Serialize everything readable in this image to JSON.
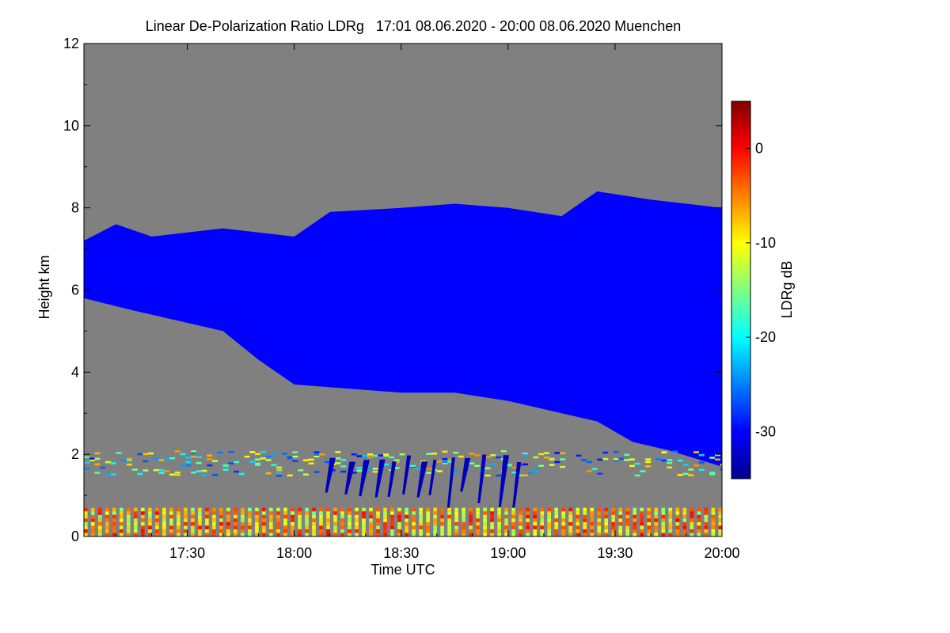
{
  "chart_data": {
    "type": "heatmap",
    "title": "Linear De-Polarization Ratio LDRg   17:01 08.06.2020 - 20:00 08.06.2020 Muenchen",
    "xlabel": "Time UTC",
    "ylabel": "Height km",
    "colorbar_label": "LDRg dB",
    "x_time_range": [
      "17:01",
      "20:00"
    ],
    "x_ticks": [
      "17:30",
      "18:00",
      "18:30",
      "19:00",
      "19:30",
      "20:00"
    ],
    "ylim": [
      0,
      12
    ],
    "y_ticks": [
      0,
      2,
      4,
      6,
      8,
      10,
      12
    ],
    "color_range_db": [
      -35,
      5
    ],
    "colorbar_ticks": [
      0,
      -10,
      -20,
      -30
    ],
    "no_data_color": "#808080",
    "colormap": [
      "#00008f",
      "#0000ff",
      "#0080ff",
      "#00ffff",
      "#80ff80",
      "#ffff00",
      "#ff8000",
      "#ff0000",
      "#800000"
    ],
    "cloud_layer": {
      "ldr_db": -30,
      "top_km": [
        {
          "time": "17:01",
          "value": 7.2
        },
        {
          "time": "17:10",
          "value": 7.6
        },
        {
          "time": "17:20",
          "value": 7.3
        },
        {
          "time": "17:40",
          "value": 7.5
        },
        {
          "time": "18:00",
          "value": 7.3
        },
        {
          "time": "18:10",
          "value": 7.9
        },
        {
          "time": "18:30",
          "value": 8.0
        },
        {
          "time": "18:45",
          "value": 8.1
        },
        {
          "time": "19:00",
          "value": 8.0
        },
        {
          "time": "19:15",
          "value": 7.8
        },
        {
          "time": "19:25",
          "value": 8.4
        },
        {
          "time": "19:40",
          "value": 8.2
        },
        {
          "time": "20:00",
          "value": 8.0
        }
      ],
      "base_km": [
        {
          "time": "17:01",
          "value": 5.8
        },
        {
          "time": "17:15",
          "value": 5.5
        },
        {
          "time": "17:30",
          "value": 5.2
        },
        {
          "time": "17:40",
          "value": 5.0
        },
        {
          "time": "17:50",
          "value": 4.3
        },
        {
          "time": "18:00",
          "value": 3.7
        },
        {
          "time": "18:15",
          "value": 3.6
        },
        {
          "time": "18:30",
          "value": 3.5
        },
        {
          "time": "18:45",
          "value": 3.5
        },
        {
          "time": "19:00",
          "value": 3.3
        },
        {
          "time": "19:15",
          "value": 3.0
        },
        {
          "time": "19:25",
          "value": 2.8
        },
        {
          "time": "19:35",
          "value": 2.3
        },
        {
          "time": "19:45",
          "value": 2.1
        },
        {
          "time": "20:00",
          "value": 1.7
        }
      ]
    },
    "boundary_layer": {
      "range_km": [
        0,
        0.7
      ],
      "ldr_db_range": [
        -15,
        0
      ]
    },
    "residual_layer": {
      "range_km": [
        1.5,
        2.1
      ],
      "ldr_db_range": [
        -30,
        -5
      ]
    },
    "virga_streaks": {
      "time_range": [
        "18:10",
        "19:05"
      ],
      "range_km": [
        0.6,
        2.0
      ],
      "ldr_db": -33
    }
  }
}
